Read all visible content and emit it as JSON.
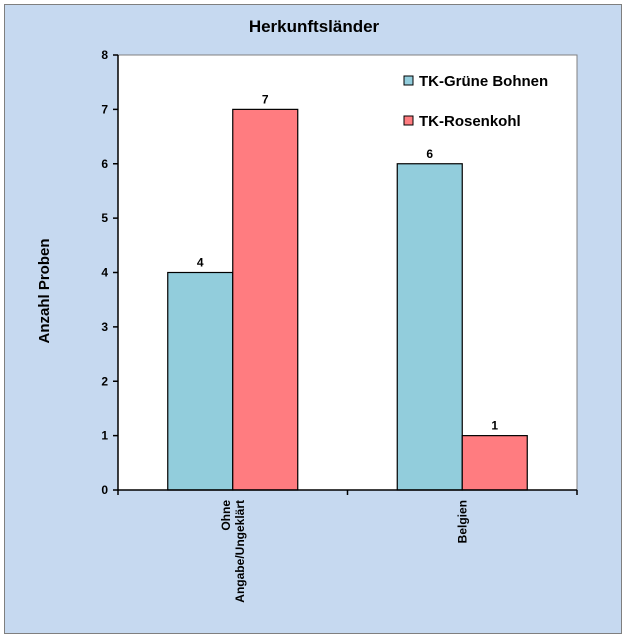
{
  "chart_data": {
    "type": "bar",
    "title": "Herkunftsländer",
    "xlabel": "",
    "ylabel": "Anzahl Proben",
    "categories": [
      "Ohne Angabe/Ungeklärt",
      "Belgien"
    ],
    "category_lines": [
      [
        "Ohne",
        "Angabe/Ungeklärt"
      ],
      [
        "Belgien"
      ]
    ],
    "series": [
      {
        "name": "TK-Grüne Bohnen",
        "values": [
          4,
          6
        ],
        "color": "#92cddc"
      },
      {
        "name": "TK-Rosenkohl",
        "values": [
          7,
          1
        ],
        "color": "#ff7c80"
      }
    ],
    "ylim": [
      0,
      8
    ],
    "yticks": [
      0,
      1,
      2,
      3,
      4,
      5,
      6,
      7,
      8
    ],
    "grid": false,
    "legend_position": "top-right",
    "data_labels": true,
    "plot_background": "#ffffff",
    "chart_background": "#c6d9f0"
  }
}
